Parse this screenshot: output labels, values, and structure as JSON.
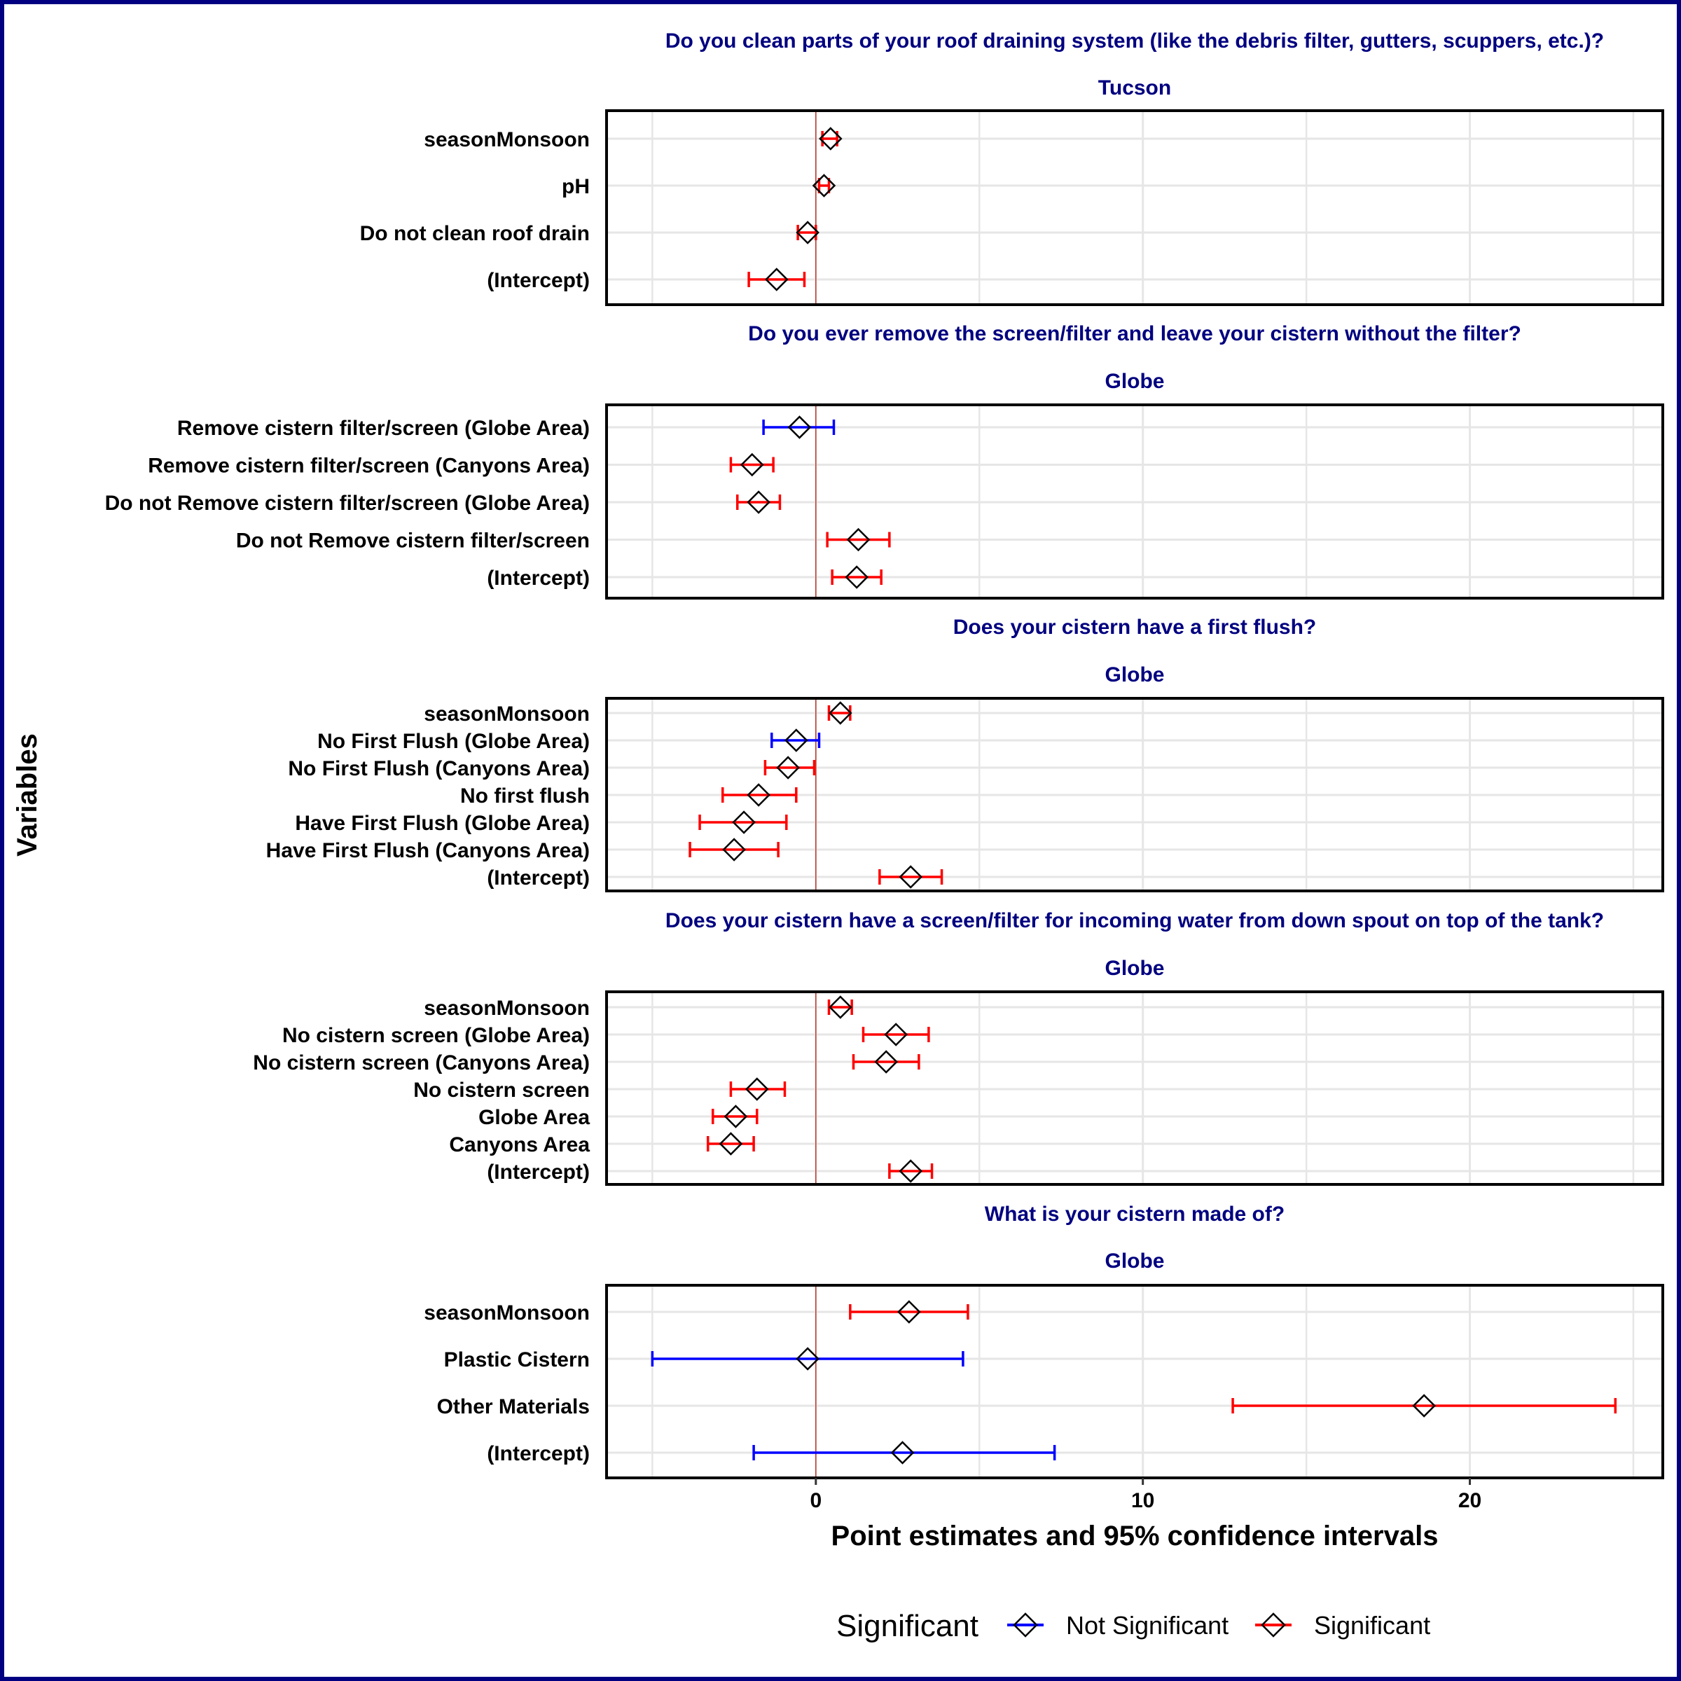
{
  "chart_data": {
    "type": "forest",
    "ylabel": "Variables",
    "xlabel": "Point estimates and 95% confidence intervals",
    "xlim": [
      -6.4,
      25.9
    ],
    "x_ticks": [
      0,
      10,
      20
    ],
    "grid": true,
    "legend": {
      "title": "Significant",
      "position": "bottom",
      "entries": [
        {
          "label": "Not Significant",
          "color": "#0000ff"
        },
        {
          "label": "Significant",
          "color": "#ff0000"
        }
      ]
    },
    "panels": [
      {
        "question": "Do you clean parts of your roof draining system (like the debris filter, gutters, scuppers, etc.)?",
        "strip": "Tucson",
        "rows": [
          {
            "label": "seasonMonsoon",
            "estimate": 0.45,
            "lower": 0.2,
            "upper": 0.65,
            "significant": true
          },
          {
            "label": "pH",
            "estimate": 0.25,
            "lower": 0.1,
            "upper": 0.4,
            "significant": true
          },
          {
            "label": "Do not clean roof drain",
            "estimate": -0.25,
            "lower": -0.55,
            "upper": 0.0,
            "significant": true
          },
          {
            "label": "(Intercept)",
            "estimate": -1.2,
            "lower": -2.05,
            "upper": -0.35,
            "significant": true
          }
        ]
      },
      {
        "question": "Do you ever remove the screen/filter and leave your cistern without the filter?",
        "strip": "Globe",
        "rows": [
          {
            "label": "Remove cistern filter/screen (Globe Area)",
            "estimate": -0.5,
            "lower": -1.6,
            "upper": 0.55,
            "significant": false
          },
          {
            "label": "Remove cistern filter/screen (Canyons Area)",
            "estimate": -1.95,
            "lower": -2.6,
            "upper": -1.3,
            "significant": true
          },
          {
            "label": "Do not Remove cistern filter/screen (Globe Area)",
            "estimate": -1.75,
            "lower": -2.4,
            "upper": -1.1,
            "significant": true
          },
          {
            "label": "Do not Remove cistern filter/screen",
            "estimate": 1.3,
            "lower": 0.35,
            "upper": 2.25,
            "significant": true
          },
          {
            "label": "(Intercept)",
            "estimate": 1.25,
            "lower": 0.5,
            "upper": 2.0,
            "significant": true
          }
        ]
      },
      {
        "question": "Does your cistern have a first flush?",
        "strip": "Globe",
        "rows": [
          {
            "label": "seasonMonsoon",
            "estimate": 0.75,
            "lower": 0.4,
            "upper": 1.05,
            "significant": true
          },
          {
            "label": "No First Flush (Globe Area)",
            "estimate": -0.6,
            "lower": -1.35,
            "upper": 0.1,
            "significant": false
          },
          {
            "label": "No First Flush (Canyons Area)",
            "estimate": -0.85,
            "lower": -1.55,
            "upper": -0.05,
            "significant": true
          },
          {
            "label": "No first flush",
            "estimate": -1.75,
            "lower": -2.85,
            "upper": -0.6,
            "significant": true
          },
          {
            "label": "Have First Flush (Globe Area)",
            "estimate": -2.2,
            "lower": -3.55,
            "upper": -0.9,
            "significant": true
          },
          {
            "label": "Have First Flush (Canyons Area)",
            "estimate": -2.5,
            "lower": -3.85,
            "upper": -1.15,
            "significant": true
          },
          {
            "label": "(Intercept)",
            "estimate": 2.9,
            "lower": 1.95,
            "upper": 3.85,
            "significant": true
          }
        ]
      },
      {
        "question": "Does your cistern have a screen/filter for incoming water from down spout on top of the tank?",
        "strip": "Globe",
        "rows": [
          {
            "label": "seasonMonsoon",
            "estimate": 0.75,
            "lower": 0.4,
            "upper": 1.1,
            "significant": true
          },
          {
            "label": "No cistern screen (Globe Area)",
            "estimate": 2.45,
            "lower": 1.45,
            "upper": 3.45,
            "significant": true
          },
          {
            "label": "No cistern screen (Canyons Area)",
            "estimate": 2.15,
            "lower": 1.15,
            "upper": 3.15,
            "significant": true
          },
          {
            "label": "No cistern screen",
            "estimate": -1.8,
            "lower": -2.6,
            "upper": -0.95,
            "significant": true
          },
          {
            "label": "Globe Area",
            "estimate": -2.45,
            "lower": -3.15,
            "upper": -1.8,
            "significant": true
          },
          {
            "label": "Canyons Area",
            "estimate": -2.6,
            "lower": -3.3,
            "upper": -1.9,
            "significant": true
          },
          {
            "label": "(Intercept)",
            "estimate": 2.9,
            "lower": 2.25,
            "upper": 3.55,
            "significant": true
          }
        ]
      },
      {
        "question": "What is your cistern made of?",
        "strip": "Globe",
        "rows": [
          {
            "label": "seasonMonsoon",
            "estimate": 2.85,
            "lower": 1.05,
            "upper": 4.65,
            "significant": true
          },
          {
            "label": "Plastic Cistern",
            "estimate": -0.25,
            "lower": -5.0,
            "upper": 4.5,
            "significant": false
          },
          {
            "label": "Other Materials",
            "estimate": 18.6,
            "lower": 12.75,
            "upper": 24.45,
            "significant": true
          },
          {
            "label": "(Intercept)",
            "estimate": 2.65,
            "lower": -1.9,
            "upper": 7.3,
            "significant": false
          }
        ]
      }
    ]
  }
}
